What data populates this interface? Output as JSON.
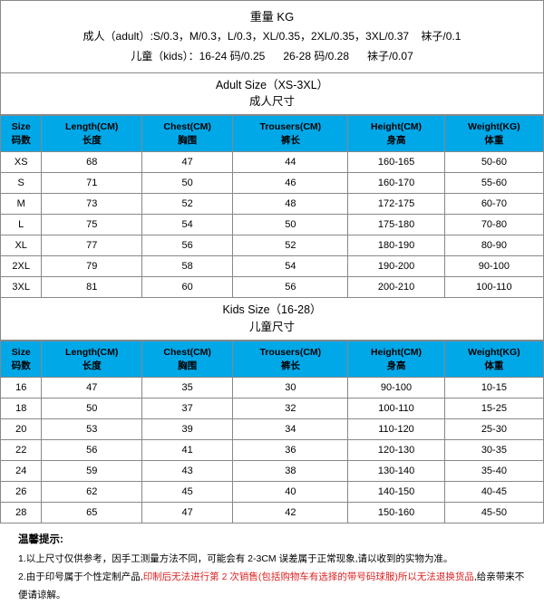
{
  "header": {
    "title": "重量 KG",
    "line2_a": "成人（adult）:S/0.3，M/0.3，L/0.3，XL/0.35，2XL/0.35，3XL/0.37",
    "line2_b": "袜子/0.1",
    "line3_a": "儿童（kids）：16-24 码/0.25",
    "line3_b": "26-28 码/0.28",
    "line3_c": "袜子/0.07"
  },
  "adult": {
    "title_en": "Adult Size（XS-3XL）",
    "title_cn": "成人尺寸",
    "columns": [
      {
        "en": "Size",
        "cn": "码数"
      },
      {
        "en": "Length(CM)",
        "cn": "长度"
      },
      {
        "en": "Chest(CM)",
        "cn": "胸围"
      },
      {
        "en": "Trousers(CM)",
        "cn": "裤长"
      },
      {
        "en": "Height(CM)",
        "cn": "身高"
      },
      {
        "en": "Weight(KG)",
        "cn": "体重"
      }
    ],
    "rows": [
      [
        "XS",
        "68",
        "47",
        "44",
        "160-165",
        "50-60"
      ],
      [
        "S",
        "71",
        "50",
        "46",
        "160-170",
        "55-60"
      ],
      [
        "M",
        "73",
        "52",
        "48",
        "172-175",
        "60-70"
      ],
      [
        "L",
        "75",
        "54",
        "50",
        "175-180",
        "70-80"
      ],
      [
        "XL",
        "77",
        "56",
        "52",
        "180-190",
        "80-90"
      ],
      [
        "2XL",
        "79",
        "58",
        "54",
        "190-200",
        "90-100"
      ],
      [
        "3XL",
        "81",
        "60",
        "56",
        "200-210",
        "100-110"
      ]
    ]
  },
  "kids": {
    "title_en": "Kids Size（16-28）",
    "title_cn": "儿童尺寸",
    "columns": [
      {
        "en": "Size",
        "cn": "码数"
      },
      {
        "en": "Length(CM)",
        "cn": "长度"
      },
      {
        "en": "Chest(CM)",
        "cn": "胸围"
      },
      {
        "en": "Trousers(CM)",
        "cn": "裤长"
      },
      {
        "en": "Height(CM)",
        "cn": "身高"
      },
      {
        "en": "Weight(KG)",
        "cn": "体重"
      }
    ],
    "rows": [
      [
        "16",
        "47",
        "35",
        "30",
        "90-100",
        "10-15"
      ],
      [
        "18",
        "50",
        "37",
        "32",
        "100-110",
        "15-25"
      ],
      [
        "20",
        "53",
        "39",
        "34",
        "110-120",
        "25-30"
      ],
      [
        "22",
        "56",
        "41",
        "36",
        "120-130",
        "30-35"
      ],
      [
        "24",
        "59",
        "43",
        "38",
        "130-140",
        "35-40"
      ],
      [
        "26",
        "62",
        "45",
        "40",
        "140-150",
        "40-45"
      ],
      [
        "28",
        "65",
        "47",
        "42",
        "150-160",
        "45-50"
      ]
    ]
  },
  "tips": {
    "title": "温馨提示:",
    "line1": "1.以上尺寸仅供参考，因手工测量方法不同，可能会有 2-3CM 误差属于正常现象,请以收到的实物为准。",
    "line2_a": "2.由于印号属于个性定制产品,",
    "line2_b": "印制后无法进行第 2 次销售(包括购物车有选择的带号码球服)所以无法退换货品",
    "line2_c": ",给亲带来不便请谅解。"
  },
  "style": {
    "header_bg": "#00a8e8",
    "border_color": "#888888",
    "text_color": "#000000",
    "warn_color": "#d22"
  }
}
